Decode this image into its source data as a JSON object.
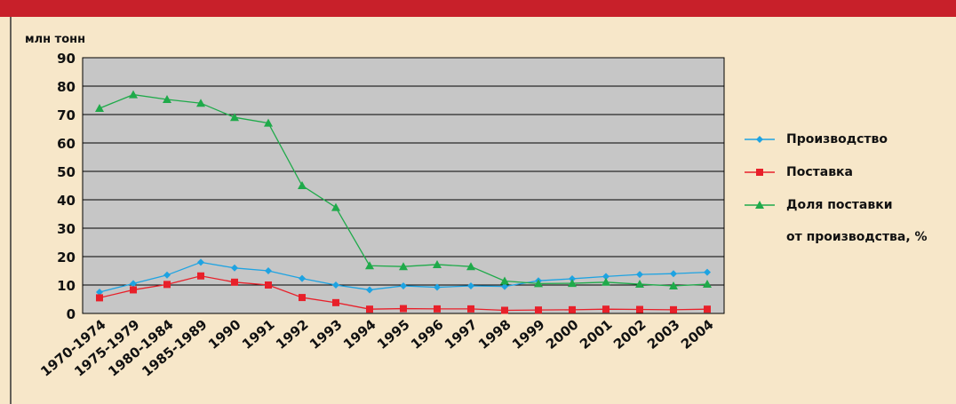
{
  "chart_data": {
    "type": "line",
    "y_label": "млн тонн",
    "categories": [
      "1970-1974",
      "1975-1979",
      "1980-1984",
      "1985-1989",
      "1990",
      "1991",
      "1992",
      "1993",
      "1994",
      "1995",
      "1996",
      "1997",
      "1998",
      "1999",
      "2000",
      "2001",
      "2002",
      "2003",
      "2004"
    ],
    "series": [
      {
        "name": "Производство",
        "color": "#1ea3e2",
        "marker": "diamond",
        "values": [
          7.5,
          10.5,
          13.5,
          18,
          16,
          15,
          12.3,
          10,
          8.3,
          9.7,
          9.2,
          9.7,
          9.5,
          11.5,
          12.2,
          13,
          13.7,
          14,
          14.5
        ]
      },
      {
        "name": "Поставка",
        "color": "#e8202a",
        "marker": "square",
        "values": [
          5.5,
          8.3,
          10.2,
          13.2,
          11,
          10,
          5.6,
          3.8,
          1.5,
          1.7,
          1.6,
          1.6,
          1.1,
          1.2,
          1.3,
          1.5,
          1.4,
          1.3,
          1.5
        ]
      },
      {
        "name": "Доля поставки\nот производства, %",
        "color": "#1faa4a",
        "marker": "triangle",
        "values": [
          72.2,
          77,
          75.3,
          74,
          69,
          67,
          45,
          37.3,
          16.8,
          16.5,
          17.2,
          16.5,
          11.4,
          10.5,
          10.6,
          11,
          10.3,
          9.7,
          10.3
        ]
      }
    ],
    "ylim": [
      0,
      90
    ],
    "yticks": [
      0,
      10,
      20,
      30,
      40,
      50,
      60,
      70,
      80,
      90
    ],
    "grid": true,
    "legend": "right"
  }
}
